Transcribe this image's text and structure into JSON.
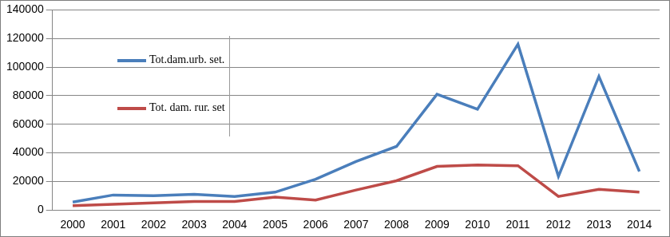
{
  "chart_data": {
    "type": "line",
    "categories": [
      "2000",
      "2001",
      "2002",
      "2003",
      "2004",
      "2005",
      "2006",
      "2007",
      "2008",
      "2009",
      "2010",
      "2011",
      "2012",
      "2013",
      "2014"
    ],
    "series": [
      {
        "name": "Tot.dam.urb. set.",
        "color": "#4a7ebb",
        "values": [
          5500,
          10500,
          10000,
          11000,
          9500,
          12500,
          21500,
          34000,
          44500,
          81000,
          70500,
          116000,
          23500,
          93500,
          27000
        ]
      },
      {
        "name": "Tot. dam. rur. set",
        "color": "#be4b48",
        "values": [
          3000,
          4000,
          5000,
          6000,
          6000,
          9000,
          7000,
          14000,
          20500,
          30500,
          31500,
          31000,
          9500,
          14500,
          12500
        ]
      }
    ],
    "ylim": [
      0,
      140000
    ],
    "yticks": [
      0,
      20000,
      40000,
      60000,
      80000,
      100000,
      120000,
      140000
    ],
    "grid": true,
    "legend": "upper left"
  }
}
